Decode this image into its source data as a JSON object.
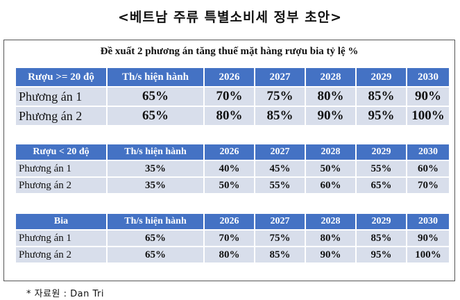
{
  "page_title": "<베트남 주류 특별소비세 정부 초안>",
  "subtitle": "Đề xuất 2 phương án tăng thuế mặt hàng rượu bia tỷ lệ %",
  "source": "* 자료원 : Dan Tri",
  "tables": [
    {
      "category": "Rượu >= 20 độ",
      "columns": [
        "Th/s hiện hành",
        "2026",
        "2027",
        "2028",
        "2029",
        "2030"
      ],
      "rows": [
        {
          "label": "Phương án 1",
          "values": [
            "65%",
            "70%",
            "75%",
            "80%",
            "85%",
            "90%"
          ]
        },
        {
          "label": "Phương án 2",
          "values": [
            "65%",
            "80%",
            "85%",
            "90%",
            "95%",
            "100%"
          ]
        }
      ]
    },
    {
      "category": "Rượu < 20 độ",
      "columns": [
        "Th/s hiện hành",
        "2026",
        "2027",
        "2028",
        "2029",
        "2030"
      ],
      "rows": [
        {
          "label": "Phương án 1",
          "values": [
            "35%",
            "40%",
            "45%",
            "50%",
            "55%",
            "60%"
          ]
        },
        {
          "label": "Phương án 2",
          "values": [
            "35%",
            "50%",
            "55%",
            "60%",
            "65%",
            "70%"
          ]
        }
      ]
    },
    {
      "category": "Bia",
      "columns": [
        "Th/s hiện hành",
        "2026",
        "2027",
        "2028",
        "2029",
        "2030"
      ],
      "rows": [
        {
          "label": "Phương án 1",
          "values": [
            "65%",
            "70%",
            "75%",
            "80%",
            "85%",
            "90%"
          ]
        },
        {
          "label": "Phương án 2",
          "values": [
            "65%",
            "80%",
            "85%",
            "90%",
            "95%",
            "100%"
          ]
        }
      ]
    }
  ]
}
